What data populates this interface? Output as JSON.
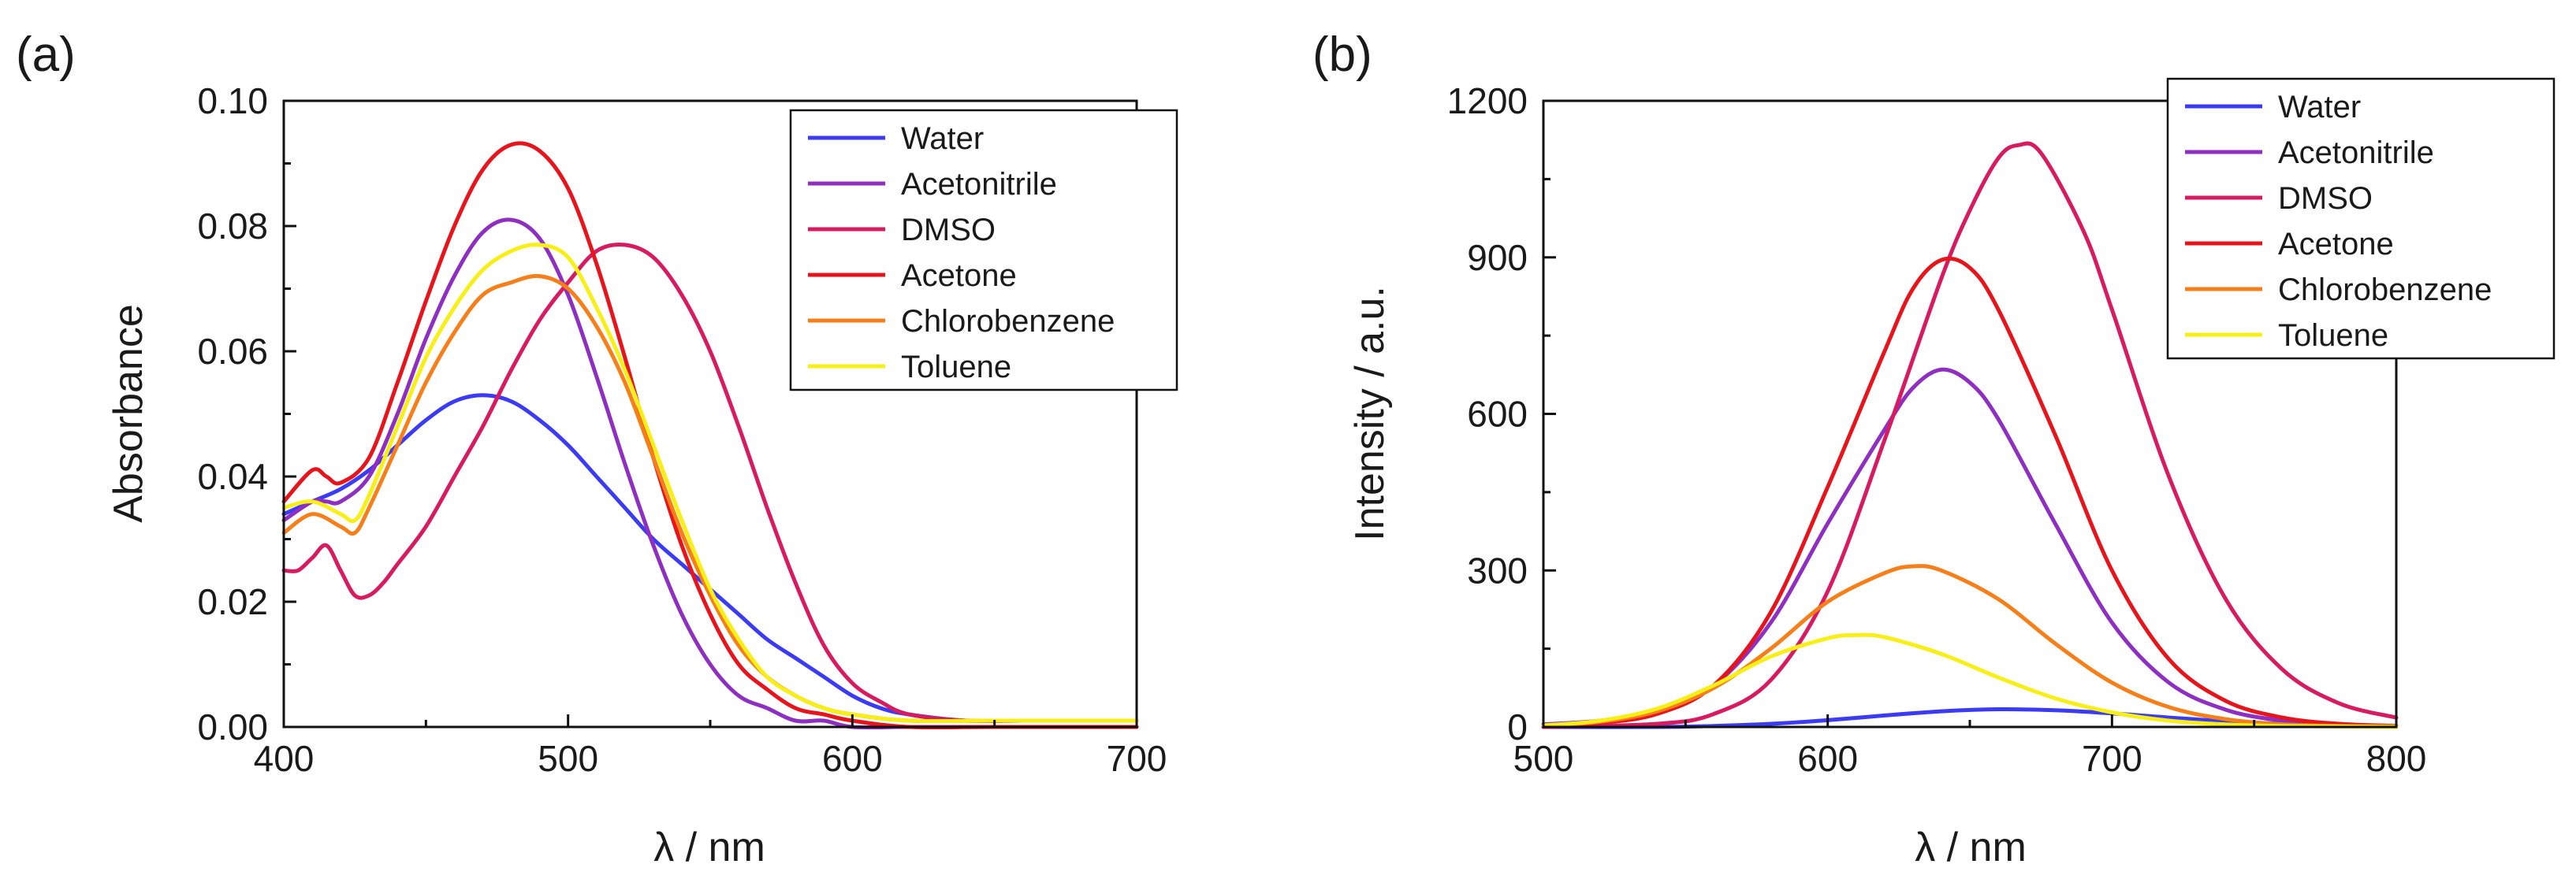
{
  "chart_data": [
    {
      "type": "line",
      "panel_label": "(a)",
      "title": "",
      "xlabel": "λ / nm",
      "ylabel": "Absorbance",
      "xlim": [
        400,
        700
      ],
      "ylim": [
        0,
        0.1
      ],
      "xticks": [
        400,
        500,
        600,
        700
      ],
      "xtick_labels": [
        "400",
        "500",
        "600",
        "700"
      ],
      "yticks": [
        0,
        0.02,
        0.04,
        0.06,
        0.08,
        0.1
      ],
      "ytick_labels": [
        "0.00",
        "0.02",
        "0.04",
        "0.06",
        "0.08",
        "0.10"
      ],
      "grid": false,
      "legend_position": "top-right",
      "series": [
        {
          "name": "Water",
          "color": "#3b3bf5",
          "x": [
            400,
            410,
            420,
            430,
            440,
            450,
            460,
            470,
            480,
            490,
            500,
            510,
            520,
            530,
            540,
            550,
            560,
            570,
            580,
            590,
            600,
            610,
            620,
            640,
            660,
            680,
            700
          ],
          "y": [
            0.034,
            0.036,
            0.038,
            0.041,
            0.045,
            0.049,
            0.052,
            0.053,
            0.052,
            0.049,
            0.045,
            0.04,
            0.035,
            0.03,
            0.026,
            0.022,
            0.018,
            0.014,
            0.011,
            0.008,
            0.005,
            0.003,
            0.002,
            0.001,
            0.001,
            0.001,
            0.001
          ]
        },
        {
          "name": "Acetonitrile",
          "color": "#8e2fc2",
          "x": [
            400,
            410,
            415,
            420,
            430,
            440,
            450,
            460,
            470,
            480,
            490,
            500,
            510,
            520,
            530,
            540,
            550,
            560,
            570,
            580,
            590,
            600,
            620,
            650,
            700
          ],
          "y": [
            0.033,
            0.036,
            0.036,
            0.036,
            0.04,
            0.05,
            0.062,
            0.072,
            0.079,
            0.081,
            0.078,
            0.069,
            0.056,
            0.042,
            0.029,
            0.018,
            0.01,
            0.005,
            0.003,
            0.001,
            0.001,
            0.0,
            0.0,
            0.0,
            0.0
          ]
        },
        {
          "name": "DMSO",
          "color": "#d81b60",
          "x": [
            400,
            405,
            410,
            415,
            420,
            425,
            430,
            435,
            440,
            450,
            460,
            470,
            480,
            490,
            500,
            510,
            520,
            530,
            540,
            550,
            560,
            570,
            580,
            590,
            600,
            610,
            620,
            640,
            660,
            700
          ],
          "y": [
            0.025,
            0.025,
            0.027,
            0.029,
            0.025,
            0.021,
            0.021,
            0.023,
            0.026,
            0.032,
            0.04,
            0.048,
            0.057,
            0.065,
            0.071,
            0.076,
            0.077,
            0.075,
            0.069,
            0.06,
            0.048,
            0.035,
            0.023,
            0.013,
            0.007,
            0.004,
            0.002,
            0.001,
            0.001,
            0.001
          ]
        },
        {
          "name": "Acetone",
          "color": "#e8141c",
          "x": [
            400,
            410,
            415,
            420,
            430,
            440,
            450,
            460,
            470,
            480,
            490,
            500,
            510,
            520,
            530,
            540,
            550,
            560,
            570,
            580,
            590,
            600,
            620,
            650,
            700
          ],
          "y": [
            0.036,
            0.041,
            0.04,
            0.039,
            0.043,
            0.055,
            0.068,
            0.08,
            0.089,
            0.093,
            0.092,
            0.086,
            0.074,
            0.059,
            0.043,
            0.029,
            0.018,
            0.01,
            0.006,
            0.003,
            0.002,
            0.001,
            0.0,
            0.0,
            0.0
          ]
        },
        {
          "name": "Chlorobenzene",
          "color": "#f77f1a",
          "x": [
            400,
            410,
            420,
            425,
            430,
            440,
            450,
            460,
            470,
            480,
            490,
            500,
            510,
            520,
            530,
            540,
            550,
            560,
            570,
            580,
            590,
            600,
            620,
            650,
            700
          ],
          "y": [
            0.031,
            0.034,
            0.032,
            0.031,
            0.035,
            0.045,
            0.055,
            0.063,
            0.069,
            0.071,
            0.072,
            0.07,
            0.064,
            0.055,
            0.043,
            0.031,
            0.021,
            0.013,
            0.008,
            0.005,
            0.003,
            0.002,
            0.001,
            0.001,
            0.001
          ]
        },
        {
          "name": "Toluene",
          "color": "#f7ef16",
          "x": [
            400,
            410,
            420,
            425,
            430,
            440,
            450,
            460,
            470,
            480,
            490,
            500,
            510,
            520,
            530,
            540,
            550,
            560,
            570,
            580,
            590,
            600,
            620,
            650,
            700
          ],
          "y": [
            0.035,
            0.036,
            0.034,
            0.033,
            0.037,
            0.048,
            0.059,
            0.067,
            0.073,
            0.076,
            0.077,
            0.075,
            0.067,
            0.057,
            0.045,
            0.033,
            0.022,
            0.014,
            0.008,
            0.005,
            0.003,
            0.002,
            0.001,
            0.001,
            0.001
          ]
        }
      ]
    },
    {
      "type": "line",
      "panel_label": "(b)",
      "title": "",
      "xlabel": "λ / nm",
      "ylabel": "Intensity / a.u.",
      "xlim": [
        500,
        800
      ],
      "ylim": [
        0,
        1200
      ],
      "xticks": [
        500,
        600,
        700,
        800
      ],
      "xtick_labels": [
        "500",
        "600",
        "700",
        "800"
      ],
      "yticks": [
        0,
        300,
        600,
        900,
        1200
      ],
      "ytick_labels": [
        "0",
        "300",
        "600",
        "900",
        "1200"
      ],
      "grid": false,
      "legend_position": "top-right",
      "series": [
        {
          "name": "Water",
          "color": "#3b3bf5",
          "x": [
            500,
            540,
            560,
            580,
            600,
            620,
            640,
            660,
            680,
            700,
            720,
            740,
            760,
            780,
            800
          ],
          "y": [
            0,
            0,
            2,
            6,
            13,
            22,
            30,
            34,
            32,
            26,
            18,
            11,
            6,
            3,
            1
          ]
        },
        {
          "name": "Acetonitrile",
          "color": "#8e2fc2",
          "x": [
            500,
            520,
            540,
            560,
            580,
            600,
            620,
            630,
            640,
            650,
            660,
            680,
            700,
            720,
            740,
            760,
            780,
            800
          ],
          "y": [
            5,
            12,
            30,
            80,
            200,
            390,
            570,
            650,
            685,
            660,
            590,
            390,
            200,
            85,
            33,
            12,
            4,
            1
          ]
        },
        {
          "name": "DMSO",
          "color": "#d81b60",
          "x": [
            500,
            540,
            560,
            580,
            600,
            620,
            640,
            650,
            660,
            667,
            675,
            690,
            700,
            720,
            740,
            760,
            780,
            800
          ],
          "y": [
            0,
            6,
            25,
            90,
            260,
            550,
            860,
            990,
            1090,
            1115,
            1100,
            950,
            800,
            480,
            245,
            110,
            45,
            18
          ]
        },
        {
          "name": "Acetone",
          "color": "#e8141c",
          "x": [
            500,
            520,
            540,
            560,
            580,
            600,
            620,
            630,
            640,
            650,
            660,
            680,
            700,
            720,
            740,
            760,
            780,
            800
          ],
          "y": [
            3,
            8,
            25,
            80,
            220,
            460,
            720,
            840,
            895,
            880,
            800,
            560,
            300,
            130,
            50,
            18,
            6,
            2
          ]
        },
        {
          "name": "Chlorobenzene",
          "color": "#f77f1a",
          "x": [
            500,
            520,
            540,
            560,
            580,
            600,
            620,
            630,
            640,
            660,
            680,
            700,
            720,
            740,
            760,
            780,
            800
          ],
          "y": [
            3,
            10,
            30,
            75,
            150,
            240,
            295,
            308,
            300,
            245,
            160,
            85,
            38,
            15,
            5,
            2,
            1
          ]
        },
        {
          "name": "Toluene",
          "color": "#f7ef16",
          "x": [
            500,
            520,
            540,
            560,
            580,
            600,
            610,
            620,
            640,
            660,
            680,
            700,
            720,
            740,
            760,
            800
          ],
          "y": [
            3,
            12,
            35,
            80,
            135,
            170,
            176,
            172,
            140,
            95,
            55,
            28,
            12,
            5,
            2,
            0
          ]
        }
      ]
    }
  ]
}
